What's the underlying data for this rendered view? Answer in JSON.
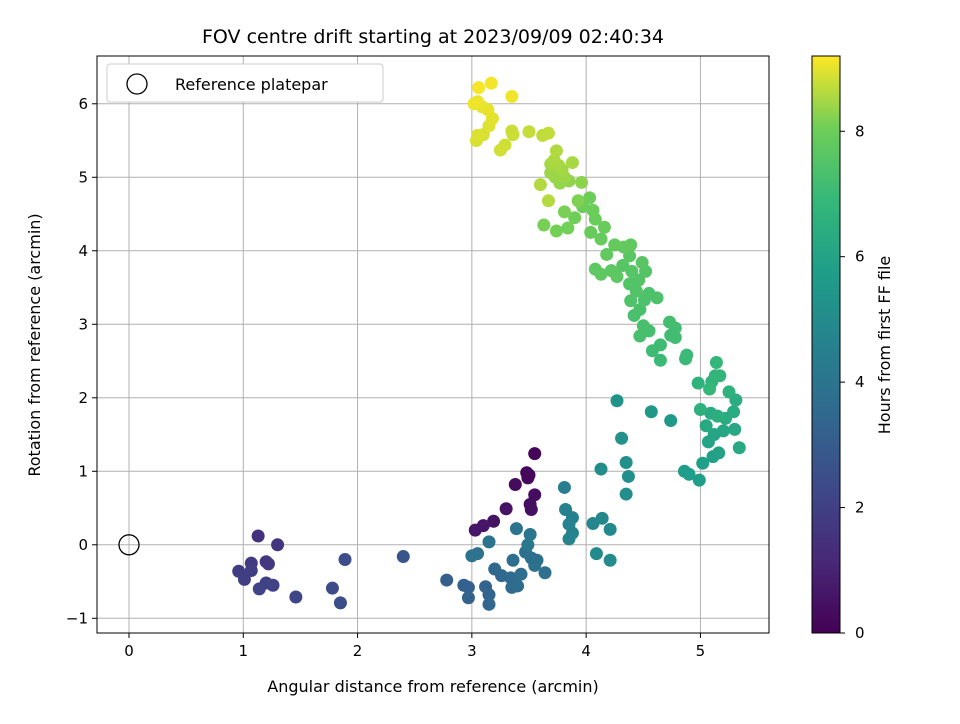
{
  "chart_data": {
    "type": "scatter",
    "title": "FOV centre drift starting at 2023/09/09 02:40:34",
    "xlabel": "Angular distance from reference (arcmin)",
    "ylabel": "Rotation from reference (arcmin)",
    "xlim": [
      -0.28,
      5.6
    ],
    "ylim": [
      -1.2,
      6.65
    ],
    "xticks": [
      0,
      1,
      2,
      3,
      4,
      5
    ],
    "yticks": [
      -1,
      0,
      1,
      2,
      3,
      4,
      5,
      6
    ],
    "grid": true,
    "legend": {
      "placement": "top-left",
      "entries": [
        "Reference platepar"
      ]
    },
    "reference_point": {
      "x": 0,
      "y": 0,
      "label": "Reference platepar"
    },
    "colorbar": {
      "label": "Hours from first FF file",
      "colormap": "viridis",
      "range": [
        0,
        9.2
      ],
      "ticks": [
        0,
        2,
        4,
        6,
        8
      ]
    },
    "points": [
      [
        1.13,
        0.12,
        1.5
      ],
      [
        1.3,
        0.0,
        1.6
      ],
      [
        1.2,
        -0.23,
        1.7
      ],
      [
        1.22,
        -0.26,
        1.75
      ],
      [
        1.07,
        -0.25,
        1.8
      ],
      [
        0.96,
        -0.36,
        1.85
      ],
      [
        1.07,
        -0.35,
        1.9
      ],
      [
        1.01,
        -0.47,
        1.95
      ],
      [
        1.2,
        -0.52,
        2.0
      ],
      [
        1.26,
        -0.55,
        2.05
      ],
      [
        1.14,
        -0.6,
        2.1
      ],
      [
        1.46,
        -0.71,
        2.2
      ],
      [
        1.78,
        -0.59,
        2.4
      ],
      [
        1.89,
        -0.2,
        2.45
      ],
      [
        1.85,
        -0.79,
        2.5
      ],
      [
        2.4,
        -0.16,
        2.8
      ],
      [
        2.78,
        -0.48,
        3.1
      ],
      [
        2.93,
        -0.55,
        3.15
      ],
      [
        2.97,
        -0.58,
        3.2
      ],
      [
        2.97,
        -0.72,
        3.25
      ],
      [
        3.12,
        -0.57,
        3.3
      ],
      [
        3.15,
        -0.68,
        3.35
      ],
      [
        3.15,
        -0.81,
        3.4
      ],
      [
        3.2,
        -0.33,
        3.45
      ],
      [
        3.26,
        -0.42,
        3.5
      ],
      [
        3.34,
        -0.45,
        3.55
      ],
      [
        3.35,
        -0.58,
        3.6
      ],
      [
        3.4,
        -0.56,
        3.65
      ],
      [
        3.43,
        -0.4,
        3.7
      ],
      [
        3.36,
        -0.21,
        3.72
      ],
      [
        3.47,
        -0.1,
        3.75
      ],
      [
        3.52,
        -0.18,
        3.78
      ],
      [
        3.55,
        -0.28,
        3.8
      ],
      [
        3.64,
        -0.38,
        3.85
      ],
      [
        3.57,
        -0.21,
        3.82
      ],
      [
        3.0,
        -0.15,
        3.9
      ],
      [
        3.05,
        -0.12,
        3.92
      ],
      [
        3.15,
        0.04,
        3.95
      ],
      [
        3.39,
        0.22,
        4.0
      ],
      [
        3.51,
        0.14,
        4.05
      ],
      [
        3.49,
        0.0,
        4.1
      ],
      [
        3.81,
        0.78,
        4.4
      ],
      [
        3.82,
        0.48,
        4.5
      ],
      [
        3.88,
        0.37,
        4.55
      ],
      [
        3.85,
        0.28,
        4.6
      ],
      [
        3.88,
        0.16,
        4.65
      ],
      [
        3.85,
        0.08,
        4.7
      ],
      [
        4.06,
        0.29,
        4.8
      ],
      [
        4.14,
        0.36,
        4.85
      ],
      [
        4.21,
        0.21,
        4.9
      ],
      [
        4.09,
        -0.12,
        4.95
      ],
      [
        4.21,
        -0.21,
        5.0
      ],
      [
        4.13,
        1.03,
        5.05
      ],
      [
        4.35,
        0.69,
        5.1
      ],
      [
        4.37,
        0.93,
        5.15
      ],
      [
        4.35,
        1.12,
        5.2
      ],
      [
        4.31,
        1.45,
        5.25
      ],
      [
        4.27,
        1.96,
        5.3
      ],
      [
        4.57,
        1.81,
        5.45
      ],
      [
        4.74,
        1.69,
        5.55
      ],
      [
        4.86,
        1.0,
        5.7
      ],
      [
        4.9,
        0.96,
        5.75
      ],
      [
        4.99,
        0.88,
        5.8
      ],
      [
        5.02,
        1.11,
        5.85
      ],
      [
        5.11,
        1.2,
        5.9
      ],
      [
        5.16,
        1.25,
        5.95
      ],
      [
        5.07,
        1.4,
        6.0
      ],
      [
        5.12,
        1.5,
        6.05
      ],
      [
        5.2,
        1.55,
        6.1
      ],
      [
        5.3,
        1.57,
        6.15
      ],
      [
        5.34,
        1.32,
        6.2
      ],
      [
        5.05,
        1.62,
        6.25
      ],
      [
        5.09,
        1.79,
        6.3
      ],
      [
        5.22,
        1.72,
        6.35
      ],
      [
        5.29,
        1.81,
        6.4
      ],
      [
        5.31,
        1.97,
        6.45
      ],
      [
        5.15,
        1.75,
        6.5
      ],
      [
        5.0,
        1.84,
        6.55
      ],
      [
        5.25,
        2.08,
        6.6
      ],
      [
        4.98,
        2.2,
        6.65
      ],
      [
        5.1,
        2.22,
        6.7
      ],
      [
        5.13,
        2.3,
        6.75
      ],
      [
        5.17,
        2.3,
        6.8
      ],
      [
        5.14,
        2.48,
        6.85
      ],
      [
        5.08,
        2.12,
        6.9
      ],
      [
        4.87,
        2.53,
        7.0
      ],
      [
        4.88,
        2.58,
        7.02
      ],
      [
        4.65,
        2.51,
        7.05
      ],
      [
        4.58,
        2.64,
        7.1
      ],
      [
        4.65,
        2.72,
        7.12
      ],
      [
        4.74,
        2.85,
        7.15
      ],
      [
        4.78,
        2.82,
        7.18
      ],
      [
        4.78,
        2.95,
        7.2
      ],
      [
        4.73,
        3.03,
        7.22
      ],
      [
        4.55,
        2.91,
        7.25
      ],
      [
        4.47,
        2.84,
        7.28
      ],
      [
        4.5,
        2.98,
        7.3
      ],
      [
        4.42,
        3.12,
        7.32
      ],
      [
        4.47,
        3.2,
        7.35
      ],
      [
        4.51,
        3.33,
        7.38
      ],
      [
        4.55,
        3.42,
        7.4
      ],
      [
        4.62,
        3.36,
        7.42
      ],
      [
        4.39,
        3.32,
        7.45
      ],
      [
        4.44,
        3.45,
        7.48
      ],
      [
        4.38,
        3.55,
        7.5
      ],
      [
        4.46,
        3.6,
        7.52
      ],
      [
        4.52,
        3.72,
        7.55
      ],
      [
        4.4,
        3.72,
        7.58
      ],
      [
        4.32,
        3.8,
        7.6
      ],
      [
        4.49,
        3.84,
        7.62
      ],
      [
        4.38,
        3.93,
        7.65
      ],
      [
        4.22,
        3.73,
        7.68
      ],
      [
        4.27,
        3.65,
        7.7
      ],
      [
        4.13,
        3.68,
        7.72
      ],
      [
        4.08,
        3.75,
        7.75
      ],
      [
        4.18,
        3.95,
        7.78
      ],
      [
        4.39,
        4.08,
        7.8
      ],
      [
        4.33,
        4.05,
        7.82
      ],
      [
        4.25,
        4.08,
        7.85
      ],
      [
        4.13,
        4.16,
        7.88
      ],
      [
        4.04,
        4.25,
        7.9
      ],
      [
        4.16,
        4.32,
        7.92
      ],
      [
        4.08,
        4.43,
        7.95
      ],
      [
        4.06,
        4.55,
        7.98
      ],
      [
        4.03,
        4.72,
        8.0
      ],
      [
        3.97,
        4.6,
        8.02
      ],
      [
        3.9,
        4.45,
        8.05
      ],
      [
        3.84,
        4.31,
        8.08
      ],
      [
        3.74,
        4.27,
        8.1
      ],
      [
        3.63,
        4.35,
        8.12
      ],
      [
        3.81,
        4.53,
        8.15
      ],
      [
        3.93,
        4.68,
        8.18
      ],
      [
        3.96,
        4.93,
        8.3
      ],
      [
        3.85,
        4.95,
        8.32
      ],
      [
        3.77,
        4.92,
        8.35
      ],
      [
        3.73,
        5.0,
        8.38
      ],
      [
        3.81,
        5.0,
        8.4
      ],
      [
        3.69,
        5.06,
        8.42
      ],
      [
        3.79,
        5.1,
        8.45
      ],
      [
        3.69,
        5.18,
        8.48
      ],
      [
        3.76,
        5.16,
        8.5
      ],
      [
        3.88,
        5.2,
        8.52
      ],
      [
        3.72,
        5.23,
        8.55
      ],
      [
        3.74,
        5.36,
        8.58
      ],
      [
        3.6,
        4.9,
        8.6
      ],
      [
        3.67,
        4.68,
        8.62
      ],
      [
        3.62,
        5.57,
        8.7
      ],
      [
        3.67,
        5.6,
        8.72
      ],
      [
        3.5,
        5.62,
        8.75
      ],
      [
        3.36,
        5.58,
        8.78
      ],
      [
        3.35,
        5.63,
        8.8
      ],
      [
        3.29,
        5.44,
        8.82
      ],
      [
        3.25,
        5.37,
        8.85
      ],
      [
        3.1,
        5.58,
        8.88
      ],
      [
        3.04,
        5.5,
        8.9
      ],
      [
        3.05,
        5.57,
        8.92
      ],
      [
        3.15,
        5.7,
        8.95
      ],
      [
        3.18,
        5.8,
        8.98
      ],
      [
        3.09,
        5.96,
        9.0
      ],
      [
        3.14,
        5.92,
        9.02
      ],
      [
        3.05,
        6.03,
        9.05
      ],
      [
        3.02,
        6.0,
        9.08
      ],
      [
        3.35,
        6.1,
        9.1
      ],
      [
        3.17,
        6.28,
        9.12
      ],
      [
        3.06,
        6.22,
        9.15
      ],
      [
        3.55,
        1.24,
        0.1
      ],
      [
        3.48,
        0.98,
        0.15
      ],
      [
        3.49,
        0.91,
        0.2
      ],
      [
        3.5,
        0.95,
        0.25
      ],
      [
        3.38,
        0.82,
        0.3
      ],
      [
        3.55,
        0.68,
        0.35
      ],
      [
        3.51,
        0.55,
        0.4
      ],
      [
        3.52,
        0.48,
        0.45
      ],
      [
        3.3,
        0.49,
        0.5
      ],
      [
        3.19,
        0.32,
        0.55
      ],
      [
        3.1,
        0.26,
        0.6
      ],
      [
        3.03,
        0.2,
        0.65
      ]
    ]
  }
}
